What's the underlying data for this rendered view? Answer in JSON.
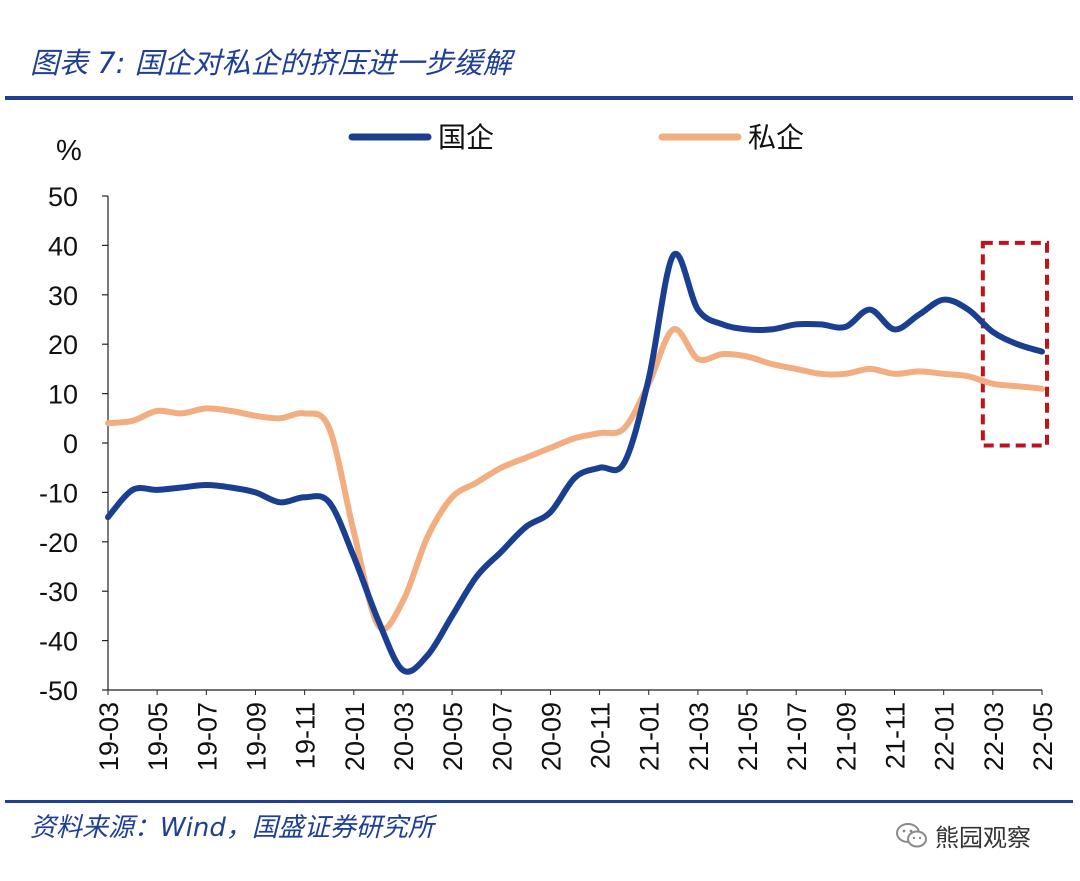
{
  "header": {
    "title": "图表 7:  国企对私企的挤压进一步缓解"
  },
  "footer": {
    "source": "资料来源：Wind，国盛证券研究所",
    "brand": "熊园观察",
    "brand_icon": "wechat-icon"
  },
  "colors": {
    "soe": "#1a3f91",
    "private": "#f2ae80",
    "highlight": "#c0121b",
    "accent": "#1f3f95"
  },
  "chart_data": {
    "type": "line",
    "title": "国企对私企的挤压进一步缓解",
    "ylabel": "%",
    "xlabel": "",
    "ylim": [
      -50,
      50
    ],
    "yticks": [
      50,
      40,
      30,
      20,
      10,
      0,
      -10,
      -20,
      -30,
      -40,
      -50
    ],
    "xlim": [
      "19-03",
      "22-05"
    ],
    "x_tick_labels": [
      "19-03",
      "19-05",
      "19-07",
      "19-09",
      "19-11",
      "20-01",
      "20-03",
      "20-05",
      "20-07",
      "20-09",
      "20-11",
      "21-01",
      "21-03",
      "21-05",
      "21-07",
      "21-09",
      "21-11",
      "22-01",
      "22-03",
      "22-05"
    ],
    "legend_position": "top-center",
    "x": [
      "19-03",
      "19-04",
      "19-05",
      "19-06",
      "19-07",
      "19-08",
      "19-09",
      "19-10",
      "19-11",
      "19-12",
      "20-01",
      "20-02",
      "20-03",
      "20-04",
      "20-05",
      "20-06",
      "20-07",
      "20-08",
      "20-09",
      "20-10",
      "20-11",
      "20-12",
      "21-01",
      "21-02",
      "21-03",
      "21-04",
      "21-05",
      "21-06",
      "21-07",
      "21-08",
      "21-09",
      "21-10",
      "21-11",
      "21-12",
      "22-01",
      "22-02",
      "22-03",
      "22-04",
      "22-05"
    ],
    "series": [
      {
        "name": "国企",
        "values": [
          -15,
          -9.5,
          -9.5,
          -9,
          -8.5,
          -9,
          -10,
          -12,
          -11,
          -12,
          -23,
          -36,
          -46,
          -43,
          -35,
          -27,
          -22,
          -17,
          -14,
          -7,
          -5,
          -4,
          13,
          38,
          27,
          24,
          23,
          23,
          24,
          24,
          23.5,
          27,
          23,
          26,
          29,
          27,
          22.5,
          20,
          18.5
        ]
      },
      {
        "name": "私企",
        "values": [
          4,
          4.5,
          6.5,
          6,
          7,
          6.5,
          5.5,
          5,
          6,
          3,
          -18,
          -37,
          -32,
          -19,
          -11,
          -8,
          -5,
          -3,
          -1,
          1,
          2,
          3,
          12,
          23,
          17,
          18,
          17.5,
          16,
          15,
          14,
          14,
          15,
          14,
          14.5,
          14,
          13.5,
          12,
          11.5,
          11
        ]
      }
    ],
    "highlight_box": {
      "from": "22-03",
      "to": "22-05",
      "y_range": [
        -0.5,
        40.5
      ]
    }
  }
}
